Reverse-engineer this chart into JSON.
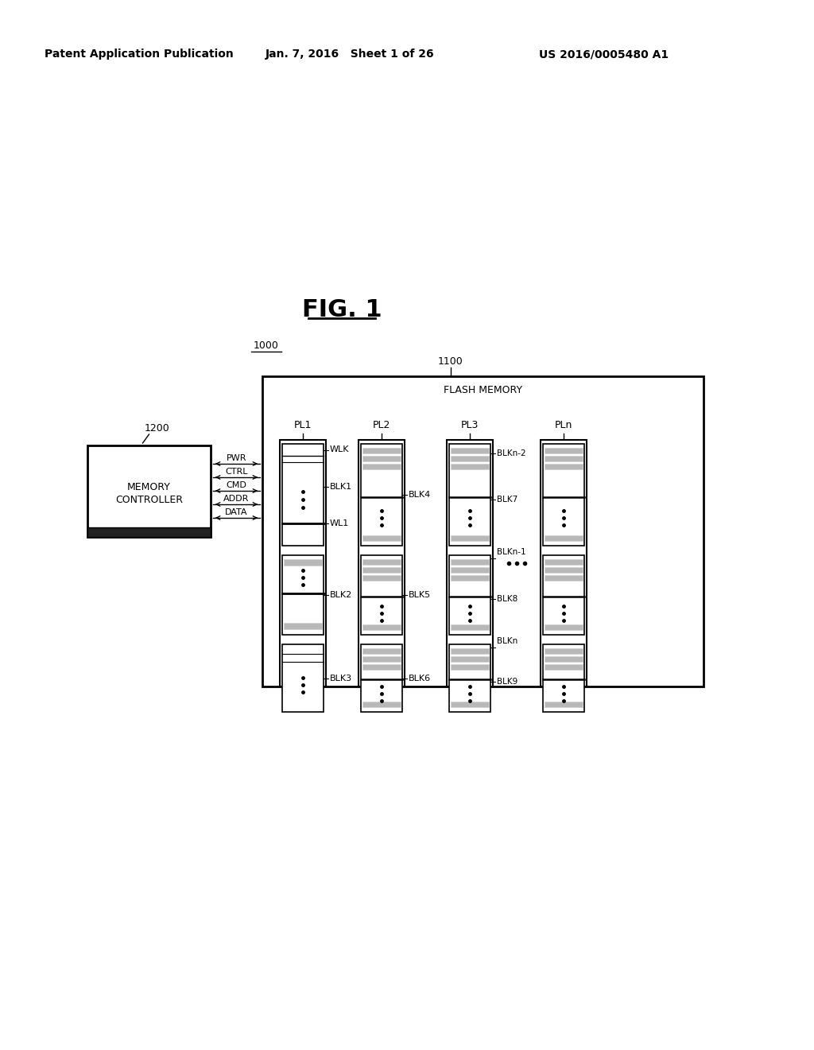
{
  "patent_header_left": "Patent Application Publication",
  "patent_header_center": "Jan. 7, 2016   Sheet 1 of 26",
  "patent_header_right": "US 2016/0005480 A1",
  "title": "FIG. 1",
  "label_1000": "1000",
  "label_1100": "1100",
  "label_1200": "1200",
  "flash_memory_label": "FLASH MEMORY",
  "mc_lines": [
    "MEMORY",
    "CONTROLLER"
  ],
  "signal_labels": [
    "PWR",
    "CTRL",
    "CMD",
    "ADDR",
    "DATA"
  ],
  "signal_dir": [
    "right",
    "left",
    "right",
    "left",
    "right"
  ],
  "pl_labels": [
    "PL1",
    "PL2",
    "PL3",
    "PLn"
  ],
  "background_color": "#ffffff",
  "text_color": "#000000",
  "gray1": "#b8b8b8",
  "gray2": "#d0d0d0",
  "darkgray": "#606060"
}
